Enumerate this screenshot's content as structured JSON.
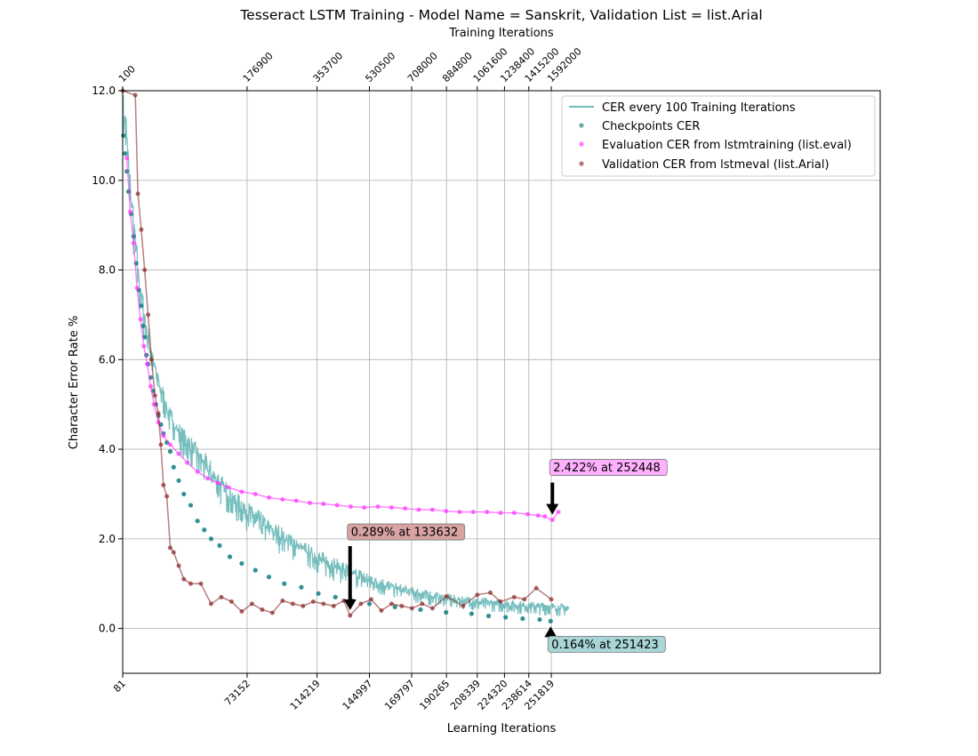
{
  "chart_data": {
    "type": "line",
    "title": "Tesseract LSTM Training - Model Name = Sanskrit, Validation List = list.Arial",
    "xlabel": "Learning Iterations",
    "x2label": "Training Iterations",
    "ylabel": "Character Error Rate %",
    "xlim": [
      81,
      445000
    ],
    "ylim": [
      -1.0,
      12.0
    ],
    "grid": true,
    "legend_position": "top-right",
    "yticks": [
      "0.0",
      "2.0",
      "4.0",
      "6.0",
      "8.0",
      "10.0",
      "12.0"
    ],
    "xticks": [
      "81",
      "73152",
      "114219",
      "144997",
      "169797",
      "190265",
      "208339",
      "224320",
      "238614",
      "251819"
    ],
    "x2ticks": [
      "100",
      "176900",
      "353700",
      "530500",
      "708000",
      "884800",
      "1061600",
      "1238400",
      "1415200",
      "1592000"
    ],
    "x2tick_positions": [
      81,
      73152,
      114219,
      144997,
      169797,
      190265,
      208339,
      224320,
      238614,
      251819
    ],
    "colors": {
      "cer": "#5fb3b3",
      "checkpoints": "#0e7f7f",
      "eval": "#ff33ff",
      "validation": "#8b2a2a"
    },
    "series": [
      {
        "name": "CER every 100 Training Iterations",
        "kind": "band",
        "x": [
          81,
          2000,
          4000,
          7000,
          10000,
          14000,
          20000,
          27000,
          35000,
          45000,
          55000,
          65000,
          75000,
          85000,
          95000,
          105000,
          115000,
          125000,
          135000,
          145000,
          155000,
          165000,
          175000,
          185000,
          195000,
          205000,
          215000,
          225000,
          235000,
          245000,
          255000,
          262000
        ],
        "upper": [
          12.0,
          11.6,
          10.5,
          9.2,
          8.0,
          7.0,
          5.9,
          5.0,
          4.5,
          4.1,
          3.6,
          3.1,
          2.8,
          2.5,
          2.25,
          2.0,
          1.75,
          1.6,
          1.4,
          1.25,
          1.1,
          0.98,
          0.9,
          0.82,
          0.76,
          0.72,
          0.68,
          0.65,
          0.62,
          0.6,
          0.58,
          0.55
        ],
        "lower": [
          10.8,
          10.2,
          9.0,
          7.8,
          6.8,
          5.9,
          5.0,
          4.3,
          3.7,
          3.2,
          2.7,
          2.3,
          2.0,
          1.7,
          1.5,
          1.3,
          1.1,
          0.95,
          0.82,
          0.72,
          0.62,
          0.55,
          0.48,
          0.42,
          0.38,
          0.34,
          0.32,
          0.29,
          0.26,
          0.24,
          0.22,
          0.22
        ]
      },
      {
        "name": "Checkpoints CER",
        "kind": "scatter",
        "x": [
          500,
          1500,
          2500,
          3500,
          5000,
          6500,
          8000,
          9500,
          11000,
          12000,
          13000,
          14000,
          15000,
          16500,
          18000,
          19500,
          21000,
          22500,
          24000,
          26000,
          28000,
          30000,
          33000,
          36000,
          40000,
          44000,
          48000,
          52000,
          57000,
          63000,
          70000,
          78000,
          86000,
          95000,
          105000,
          115000,
          125000,
          135000,
          145000,
          160000,
          175000,
          190000,
          205000,
          215000,
          225000,
          235000,
          245000,
          251423
        ],
        "y": [
          11.0,
          10.6,
          10.2,
          9.75,
          9.25,
          8.75,
          8.15,
          7.55,
          7.2,
          6.75,
          6.5,
          6.1,
          5.9,
          5.6,
          5.3,
          5.0,
          4.75,
          4.55,
          4.35,
          4.15,
          3.95,
          3.6,
          3.3,
          3.0,
          2.75,
          2.4,
          2.2,
          2.0,
          1.85,
          1.6,
          1.45,
          1.3,
          1.15,
          1.0,
          0.92,
          0.78,
          0.7,
          0.62,
          0.55,
          0.48,
          0.42,
          0.36,
          0.33,
          0.28,
          0.25,
          0.22,
          0.2,
          0.164
        ]
      },
      {
        "name": "Evaluation CER from lstmtraining (list.eval)",
        "kind": "line-points",
        "x": [
          2500,
          4500,
          6500,
          8500,
          10500,
          12500,
          14500,
          16500,
          18500,
          21000,
          24000,
          28000,
          33000,
          38000,
          44000,
          50000,
          56000,
          62000,
          70000,
          78000,
          86000,
          94000,
          102000,
          110000,
          118000,
          126000,
          134000,
          142000,
          150000,
          158000,
          166000,
          174000,
          182000,
          190000,
          198000,
          206000,
          214000,
          222000,
          230000,
          238000,
          244000,
          248000,
          252448,
          256000
        ],
        "y": [
          10.5,
          9.3,
          8.6,
          7.6,
          6.9,
          6.3,
          5.9,
          5.4,
          5.0,
          4.6,
          4.3,
          4.1,
          3.9,
          3.7,
          3.5,
          3.35,
          3.25,
          3.15,
          3.05,
          3.0,
          2.92,
          2.88,
          2.85,
          2.8,
          2.78,
          2.75,
          2.72,
          2.7,
          2.72,
          2.7,
          2.68,
          2.65,
          2.65,
          2.62,
          2.6,
          2.6,
          2.6,
          2.58,
          2.58,
          2.55,
          2.52,
          2.5,
          2.422,
          2.6
        ]
      },
      {
        "name": "Validation CER from lstmeval (list.Arial)",
        "kind": "line-points",
        "x": [
          81,
          7500,
          9000,
          11000,
          13000,
          15000,
          17000,
          19000,
          21000,
          22500,
          24000,
          26000,
          28000,
          30000,
          33000,
          36000,
          40000,
          46000,
          52000,
          58000,
          64000,
          70000,
          76000,
          82000,
          88000,
          94000,
          100000,
          106000,
          112000,
          118000,
          124000,
          130000,
          133632,
          140000,
          146000,
          152000,
          158000,
          164000,
          170000,
          176000,
          182000,
          190265,
          200000,
          208339,
          216000,
          222000,
          230000,
          236000,
          243000,
          251819
        ],
        "y": [
          12.0,
          11.9,
          9.7,
          8.9,
          8.0,
          7.0,
          6.0,
          5.2,
          4.8,
          4.1,
          3.2,
          2.95,
          1.8,
          1.7,
          1.4,
          1.1,
          1.0,
          1.0,
          0.55,
          0.7,
          0.6,
          0.38,
          0.55,
          0.42,
          0.35,
          0.62,
          0.55,
          0.5,
          0.6,
          0.55,
          0.5,
          0.62,
          0.289,
          0.55,
          0.65,
          0.4,
          0.55,
          0.5,
          0.45,
          0.55,
          0.45,
          0.72,
          0.5,
          0.75,
          0.8,
          0.6,
          0.7,
          0.65,
          0.9,
          0.65
        ]
      }
    ],
    "annotations": [
      {
        "text": "2.422% at 252448",
        "x": 252448,
        "y": 2.422,
        "color": "#ffb0ff"
      },
      {
        "text": "0.289% at 133632",
        "x": 133632,
        "y": 0.289,
        "color": "#d9a3a3"
      },
      {
        "text": "0.164% at 251423",
        "x": 251423,
        "y": 0.164,
        "color": "#a8d5d5"
      }
    ]
  }
}
